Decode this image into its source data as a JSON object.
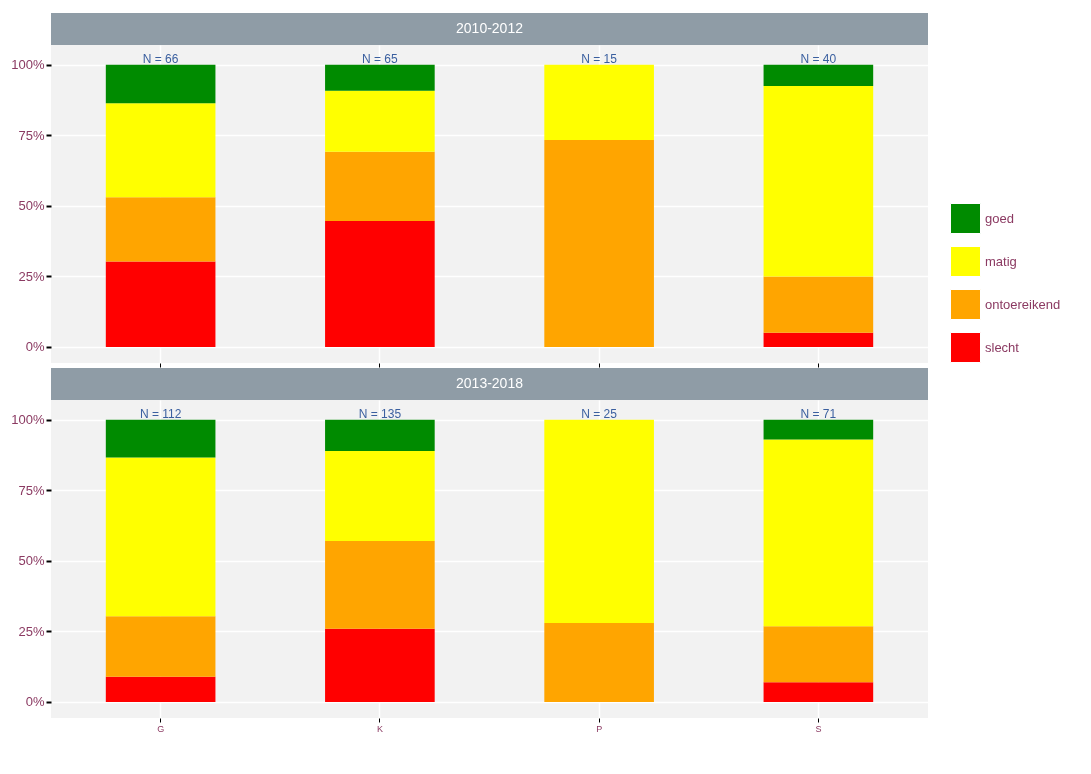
{
  "chart_data": [
    {
      "type": "bar",
      "title": "2010-2012",
      "stacked": true,
      "categories": [
        "G",
        "K",
        "P",
        "S"
      ],
      "tick_labels": "y",
      "legend": "right",
      "grid": true,
      "ylim": [
        -5.7,
        107
      ],
      "yticks": [
        {
          "value": 0,
          "label": "0%"
        },
        {
          "value": 25,
          "label": "25%"
        },
        {
          "value": 50,
          "label": "50%"
        },
        {
          "value": 75,
          "label": "75%"
        },
        {
          "value": 100,
          "label": "100%"
        }
      ],
      "series": [
        {
          "name": "slecht",
          "color": "#ff0000",
          "values": [
            30.3,
            44.6,
            null,
            5
          ]
        },
        {
          "name": "ontoereikend",
          "color": "#ffa500",
          "values": [
            22.7,
            24.6,
            73.3,
            20
          ]
        },
        {
          "name": "matig",
          "color": "#ffff00",
          "values": [
            33.4,
            21.6,
            26.7,
            67.5
          ]
        },
        {
          "name": "goed",
          "color": "#008b00",
          "values": [
            13.6,
            9.2,
            null,
            7.5
          ]
        }
      ],
      "annotations": [
        {
          "text": "N = 66",
          "x": "G",
          "y": 100
        },
        {
          "text": "N = 65",
          "x": "K",
          "y": 100
        },
        {
          "text": "N = 15",
          "x": "P",
          "y": 100
        },
        {
          "text": "N = 40",
          "x": "S",
          "y": 100
        }
      ]
    },
    {
      "type": "bar",
      "title": "2013-2018",
      "stacked": true,
      "categories": [
        "G",
        "K",
        "P",
        "S"
      ],
      "grid": true,
      "ylim": [
        -5.7,
        107
      ],
      "yticks": [
        {
          "value": 0,
          "label": "0%"
        },
        {
          "value": 25,
          "label": "25%"
        },
        {
          "value": 50,
          "label": "50%"
        },
        {
          "value": 75,
          "label": "75%"
        },
        {
          "value": 100,
          "label": "100%"
        }
      ],
      "series": [
        {
          "name": "slecht",
          "color": "#ff0000",
          "values": [
            8.9,
            25.9,
            null,
            7.0
          ]
        },
        {
          "name": "ontoereikend",
          "color": "#ffa500",
          "values": [
            21.5,
            31.1,
            28,
            19.8
          ]
        },
        {
          "name": "matig",
          "color": "#ffff00",
          "values": [
            56.2,
            31.9,
            72,
            66.2
          ]
        },
        {
          "name": "goed",
          "color": "#008b00",
          "values": [
            13.4,
            11.1,
            null,
            7.0
          ]
        }
      ],
      "annotations": [
        {
          "text": "N = 112",
          "x": "G",
          "y": 100
        },
        {
          "text": "N = 135",
          "x": "K",
          "y": 100
        },
        {
          "text": "N = 25",
          "x": "P",
          "y": 100
        },
        {
          "text": "N = 71",
          "x": "S",
          "y": 100
        }
      ]
    }
  ]
}
